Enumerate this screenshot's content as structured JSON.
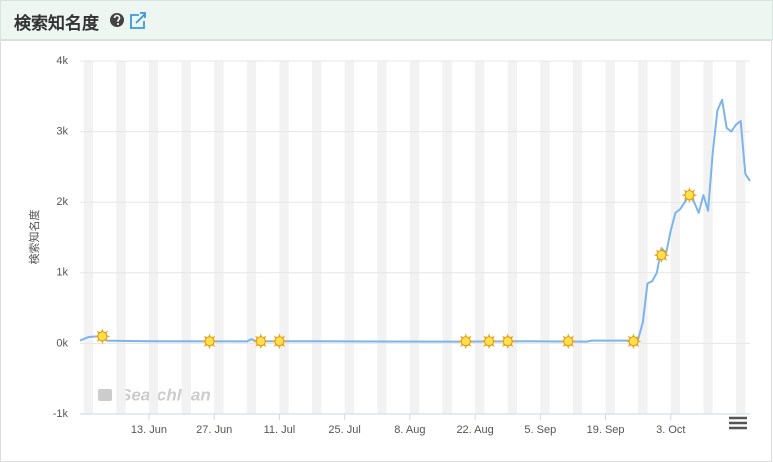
{
  "chart_data": {
    "type": "line",
    "title": "検索知名度",
    "y_label": "検索知名度",
    "watermark": "SearchMan",
    "xlim": [
      149.2,
      293
    ],
    "xticks": [
      {
        "value": 164,
        "label": "13. Jun"
      },
      {
        "value": 178,
        "label": "27. Jun"
      },
      {
        "value": 192,
        "label": "11. Jul"
      },
      {
        "value": 206,
        "label": "25. Jul"
      },
      {
        "value": 220,
        "label": "8. Aug"
      },
      {
        "value": 234,
        "label": "22. Aug"
      },
      {
        "value": 248,
        "label": "5. Sep"
      },
      {
        "value": 262,
        "label": "19. Sep"
      },
      {
        "value": 276,
        "label": "3. Oct"
      }
    ],
    "ylim": [
      -1000,
      4000
    ],
    "yticks": [
      {
        "value": -1000,
        "label": "-1k"
      },
      {
        "value": 0,
        "label": "0k"
      },
      {
        "value": 1000,
        "label": "1k"
      },
      {
        "value": 2000,
        "label": "2k"
      },
      {
        "value": 3000,
        "label": "3k"
      },
      {
        "value": 4000,
        "label": "4k"
      }
    ],
    "grid": true,
    "series": [
      {
        "color": "#7cb5ec",
        "x": [
          149.2,
          151,
          153,
          155,
          158,
          165,
          185,
          186,
          187,
          200,
          230,
          245,
          258,
          259,
          268,
          269,
          270,
          271,
          272,
          273,
          274,
          275,
          276,
          277,
          278,
          279,
          280,
          281,
          282,
          283,
          284,
          285,
          286,
          287,
          288,
          289,
          290,
          291,
          292,
          293
        ],
        "values": [
          40,
          90,
          100,
          40,
          35,
          30,
          28,
          60,
          30,
          30,
          25,
          30,
          25,
          40,
          40,
          60,
          300,
          850,
          880,
          1000,
          1350,
          1280,
          1600,
          1850,
          1900,
          2000,
          2100,
          2000,
          1850,
          2100,
          1880,
          2700,
          3300,
          3450,
          3050,
          3000,
          3100,
          3150,
          2400,
          2300
        ]
      }
    ],
    "events": {
      "x": [
        154,
        177,
        188,
        192,
        232,
        237,
        241,
        254,
        268,
        274,
        280
      ],
      "y": [
        100,
        30,
        30,
        30,
        30,
        30,
        30,
        30,
        30,
        1250,
        2100
      ]
    }
  }
}
